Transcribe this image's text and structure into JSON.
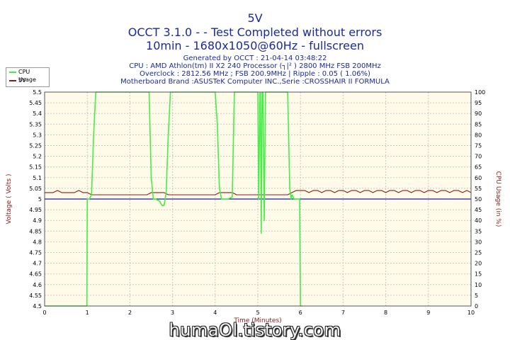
{
  "header": {
    "title_line1": "5V",
    "title_line2": "OCCT 3.1.0 -  - Test Completed without errors",
    "title_line3": "10min - 1680x1050@60Hz - fullscreen",
    "info_generated": "Generated by OCCT : 21-04-14 03:48:22",
    "info_cpu": "CPU : AMD Athlon(tm) II X2 240 Processor (┐|² ) 2800 MHz FSB 200MHz",
    "info_overclock": "Overclock : 2812.56 MHz ; FSB 200.9MHz | Ripple : 0.05 ( 1.06%)",
    "info_motherboard": "Motherboard Brand :ASUSTeK Computer INC.,Serie :CROSSHAIR II FORMULA"
  },
  "watermark": "humaOl.tistory.com",
  "colors": {
    "plot_bg": "#fffbe8",
    "grid": "#c8c8c8",
    "title": "#1a2a9a",
    "axis_label_left": "#8b1a1a",
    "axis_label_right": "#8b1a1a",
    "cpu_usage_line": "#44ee44",
    "voltage_line": "#8b1a1a",
    "reference_line": "#1a1aaa"
  },
  "chart_data": {
    "type": "line",
    "xlabel": "Time (Minutes)",
    "ylabel_left": "Voltage ( Volts )",
    "ylabel_right": "CPU Usage (in %)",
    "xlim": [
      0,
      10
    ],
    "ylim_left": [
      4.5,
      5.5
    ],
    "ylim_right": [
      0,
      100
    ],
    "x_ticks": [
      "0",
      "1",
      "2",
      "3",
      "4",
      "5",
      "6",
      "7",
      "8",
      "9",
      "10"
    ],
    "y_ticks_left": [
      "4.5",
      "4.55",
      "4.6",
      "4.65",
      "4.7",
      "4.75",
      "4.8",
      "4.85",
      "4.9",
      "4.95",
      "5",
      "5.05",
      "5.1",
      "5.15",
      "5.2",
      "5.25",
      "5.3",
      "5.35",
      "5.4",
      "5.45",
      "5.5"
    ],
    "y_ticks_right": [
      "0",
      "5",
      "10",
      "15",
      "20",
      "25",
      "30",
      "35",
      "40",
      "45",
      "50",
      "55",
      "60",
      "65",
      "70",
      "75",
      "80",
      "85",
      "90",
      "95",
      "100"
    ],
    "grid": true,
    "legend_position": "top-left",
    "series": [
      {
        "name": "CPU Usage",
        "axis": "right",
        "x": [
          0,
          0.98,
          0.99,
          1.0,
          1.02,
          1.05,
          1.1,
          1.15,
          1.2,
          1.25,
          1.3,
          2.0,
          2.4,
          2.45,
          2.5,
          2.55,
          2.6,
          2.7,
          2.75,
          2.8,
          2.85,
          2.9,
          2.95,
          3.0,
          3.5,
          4.0,
          4.05,
          4.1,
          4.15,
          4.2,
          4.3,
          4.4,
          4.45,
          4.5,
          4.55,
          4.6,
          5.0,
          5.02,
          5.05,
          5.06,
          5.08,
          5.1,
          5.12,
          5.15,
          5.18,
          5.2,
          5.25,
          5.5,
          5.7,
          5.75,
          5.78,
          5.8,
          5.85,
          5.9,
          5.95,
          5.98,
          6.0,
          6.02,
          6.05
        ],
        "y": [
          0,
          0,
          0,
          50,
          50,
          50,
          52,
          80,
          100,
          100,
          100,
          100,
          100,
          100,
          60,
          50,
          50,
          49,
          47,
          47,
          53,
          80,
          100,
          100,
          100,
          100,
          85,
          55,
          50,
          50,
          50,
          51,
          100,
          100,
          100,
          100,
          100,
          50,
          100,
          100,
          34,
          100,
          100,
          40,
          100,
          100,
          100,
          100,
          100,
          55,
          50,
          52,
          50,
          50,
          50,
          50,
          0,
          0,
          0
        ]
      },
      {
        "name": "5V",
        "axis": "left",
        "x": [
          0,
          0.1,
          0.2,
          0.3,
          0.4,
          0.5,
          0.6,
          0.7,
          0.8,
          0.9,
          1.0,
          1.1,
          1.2,
          1.3,
          1.4,
          1.5,
          1.6,
          1.7,
          1.8,
          1.9,
          2.0,
          2.1,
          2.2,
          2.3,
          2.4,
          2.5,
          2.6,
          2.7,
          2.8,
          2.9,
          3.0,
          3.1,
          3.2,
          3.3,
          3.4,
          3.5,
          3.6,
          3.7,
          3.8,
          3.9,
          4.0,
          4.1,
          4.2,
          4.3,
          4.4,
          4.5,
          4.6,
          4.7,
          4.8,
          4.9,
          5.0,
          5.1,
          5.2,
          5.3,
          5.4,
          5.5,
          5.6,
          5.7,
          5.8,
          5.9,
          6.0,
          6.1,
          6.2,
          6.3,
          6.4,
          6.5,
          6.6,
          6.7,
          6.8,
          6.9,
          7.0,
          7.1,
          7.2,
          7.3,
          7.4,
          7.5,
          7.6,
          7.7,
          7.8,
          7.9,
          8.0,
          8.1,
          8.2,
          8.3,
          8.4,
          8.5,
          8.6,
          8.7,
          8.8,
          8.9,
          9.0,
          9.1,
          9.2,
          9.3,
          9.4,
          9.5,
          9.6,
          9.7,
          9.8,
          9.9,
          10.0
        ],
        "y": [
          5.03,
          5.03,
          5.03,
          5.04,
          5.03,
          5.03,
          5.03,
          5.03,
          5.04,
          5.03,
          5.03,
          5.02,
          5.02,
          5.02,
          5.02,
          5.02,
          5.02,
          5.02,
          5.02,
          5.02,
          5.02,
          5.02,
          5.02,
          5.02,
          5.02,
          5.03,
          5.03,
          5.03,
          5.03,
          5.02,
          5.02,
          5.02,
          5.02,
          5.02,
          5.02,
          5.02,
          5.02,
          5.02,
          5.02,
          5.02,
          5.02,
          5.03,
          5.03,
          5.03,
          5.03,
          5.02,
          5.02,
          5.02,
          5.02,
          5.02,
          5.02,
          5.02,
          5.02,
          5.02,
          5.02,
          5.02,
          5.02,
          5.02,
          5.03,
          5.04,
          5.04,
          5.04,
          5.03,
          5.04,
          5.04,
          5.03,
          5.04,
          5.04,
          5.03,
          5.04,
          5.04,
          5.03,
          5.04,
          5.04,
          5.03,
          5.04,
          5.04,
          5.03,
          5.04,
          5.04,
          5.03,
          5.04,
          5.04,
          5.03,
          5.04,
          5.04,
          5.03,
          5.04,
          5.04,
          5.03,
          5.04,
          5.04,
          5.03,
          5.04,
          5.04,
          5.03,
          5.04,
          5.04,
          5.03,
          5.04,
          5.03
        ]
      },
      {
        "name": "",
        "axis": "left",
        "x": [
          0,
          10
        ],
        "y": [
          5.0,
          5.0
        ]
      }
    ]
  }
}
